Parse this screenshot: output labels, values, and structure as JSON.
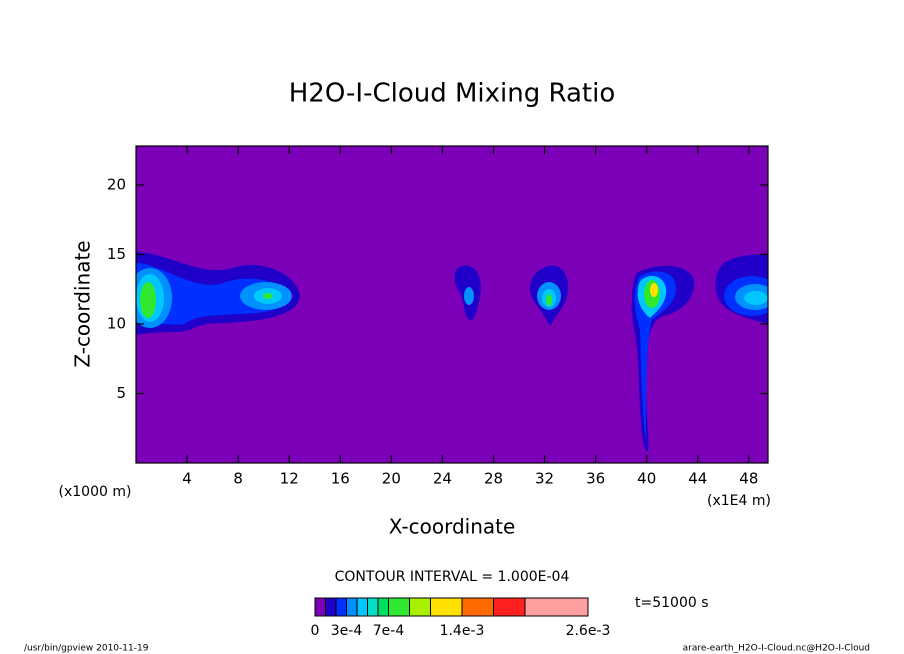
{
  "chart_data": {
    "type": "contour",
    "title": "H2O-I-Cloud Mixing Ratio",
    "x_label": "X-coordinate",
    "y_label": "Z-coordinate",
    "x_unit_left": "(x1000 m)",
    "x_unit_right": "(x1E4 m)",
    "xlim": [
      0,
      49.5
    ],
    "ylim": [
      0,
      22.8
    ],
    "xticks": [
      4,
      8,
      12,
      16,
      20,
      24,
      28,
      32,
      36,
      40,
      44,
      48
    ],
    "yticks": [
      5,
      10,
      15,
      20
    ],
    "background_color": "#7c00b8",
    "contour_interval": "CONTOUR INTERVAL = 1.000E-04",
    "time_label": "t=51000 s",
    "colorbar": {
      "levels": [
        0,
        0.0001,
        0.0002,
        0.0003,
        0.0004,
        0.0005,
        0.0006,
        0.0007,
        0.0009,
        0.0011,
        0.0014,
        0.0017,
        0.002,
        0.0026
      ],
      "colors": [
        "#7c00b8",
        "#2000c8",
        "#0030ff",
        "#0090ff",
        "#00c8ff",
        "#00e0c8",
        "#00e060",
        "#30e830",
        "#a8f000",
        "#ffe000",
        "#ff6a00",
        "#ff2020",
        "#ffa0a0"
      ],
      "ticks": [
        0,
        {
          "value": 0.0003,
          "label": "3e-4"
        },
        {
          "value": 0.0007,
          "label": "7e-4"
        },
        {
          "value": 0.0014,
          "label": "1.4e-3"
        },
        {
          "value": 0.0026,
          "label": "2.6e-3"
        }
      ]
    },
    "footer_left": "/usr/bin/gpview  2010-11-19",
    "footer_right": "arare-earth_H2O-I-Cloud.nc@H2O-I-Cloud"
  }
}
